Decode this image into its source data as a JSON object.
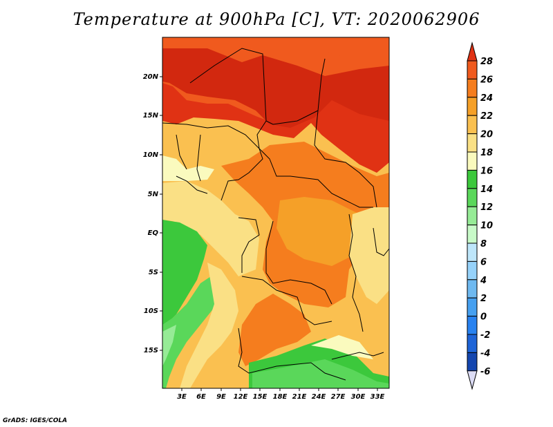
{
  "title": "Temperature at 900hPa [C], VT: 2020062906",
  "credit": "GrADS: IGES/COLA",
  "map": {
    "lat_labels": [
      "20N",
      "15N",
      "10N",
      "5N",
      "EQ",
      "5S",
      "10S",
      "15S"
    ],
    "lon_labels": [
      "3E",
      "6E",
      "9E",
      "12E",
      "15E",
      "18E",
      "21E",
      "24E",
      "27E",
      "30E",
      "33E"
    ]
  },
  "colorbar": {
    "levels": [
      "28",
      "26",
      "24",
      "22",
      "20",
      "18",
      "16",
      "14",
      "12",
      "10",
      "8",
      "6",
      "4",
      "2",
      "0",
      "-2",
      "-4",
      "-6"
    ],
    "colors": [
      "#e03214",
      "#f05a1e",
      "#f57d1e",
      "#f5a028",
      "#fac050",
      "#fae085",
      "#fafabe",
      "#3cc83c",
      "#5ad75a",
      "#96eb96",
      "#c8fac8",
      "#bee6fa",
      "#96d2fa",
      "#6eb9f0",
      "#46a0f0",
      "#2882f0",
      "#1e64d7",
      "#1446af",
      "#0a1e78",
      "#dcdcf5"
    ]
  },
  "color_note": "warm colors: 16-28 C over Sahel/central Africa; greens along the SW coast"
}
